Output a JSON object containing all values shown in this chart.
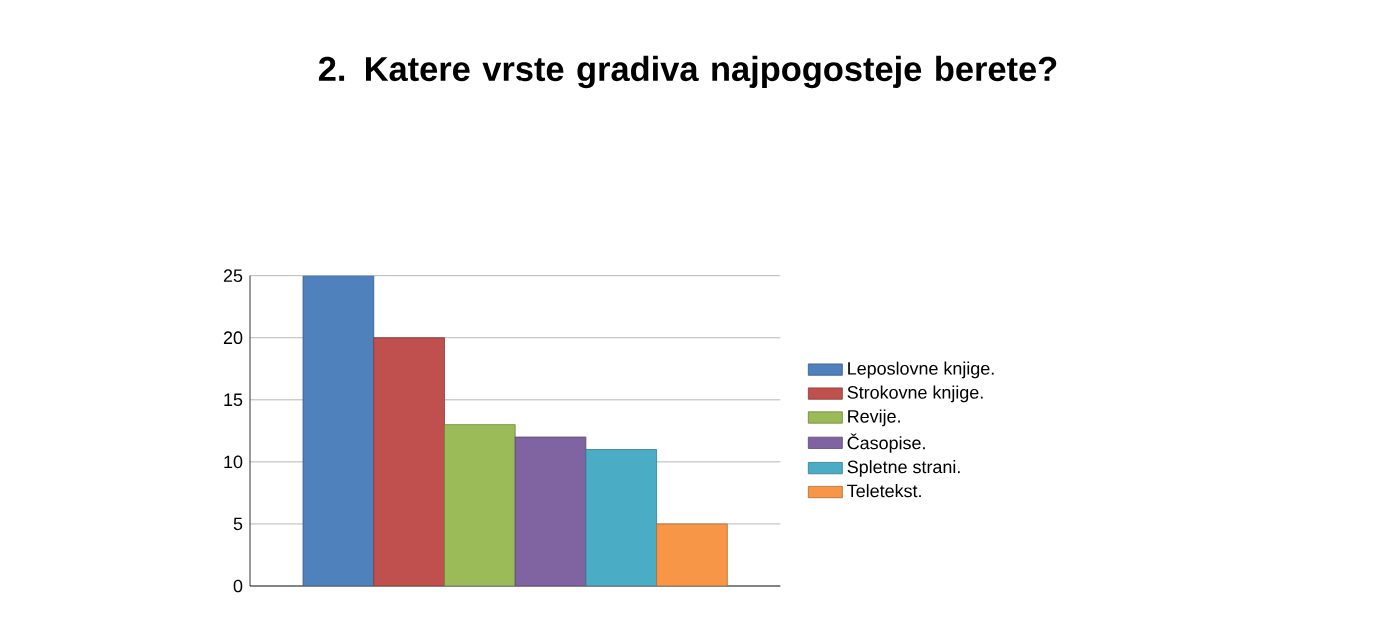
{
  "chart_data": {
    "type": "bar",
    "title": "2. Katere vrste gradiva najpogosteje berete?",
    "categories": [
      null
    ],
    "series": [
      {
        "name": "Leposlovne knjige.",
        "color": "#4f81bd",
        "values": [
          25
        ]
      },
      {
        "name": "Strokovne knjige.",
        "color": "#c0504d",
        "values": [
          20
        ]
      },
      {
        "name": "Revije.",
        "color": "#9bbb59",
        "values": [
          13
        ]
      },
      {
        "name": "Časopise.",
        "color": "#8064a2",
        "values": [
          12
        ]
      },
      {
        "name": "Spletne strani.",
        "color": "#4bacc6",
        "values": [
          11
        ]
      },
      {
        "name": "Teletekst.",
        "color": "#f79646",
        "values": [
          5
        ]
      }
    ],
    "ylim": [
      0,
      25
    ],
    "yticks": [
      0,
      5,
      10,
      15,
      20,
      25
    ],
    "grid": "y",
    "legend": "right"
  }
}
